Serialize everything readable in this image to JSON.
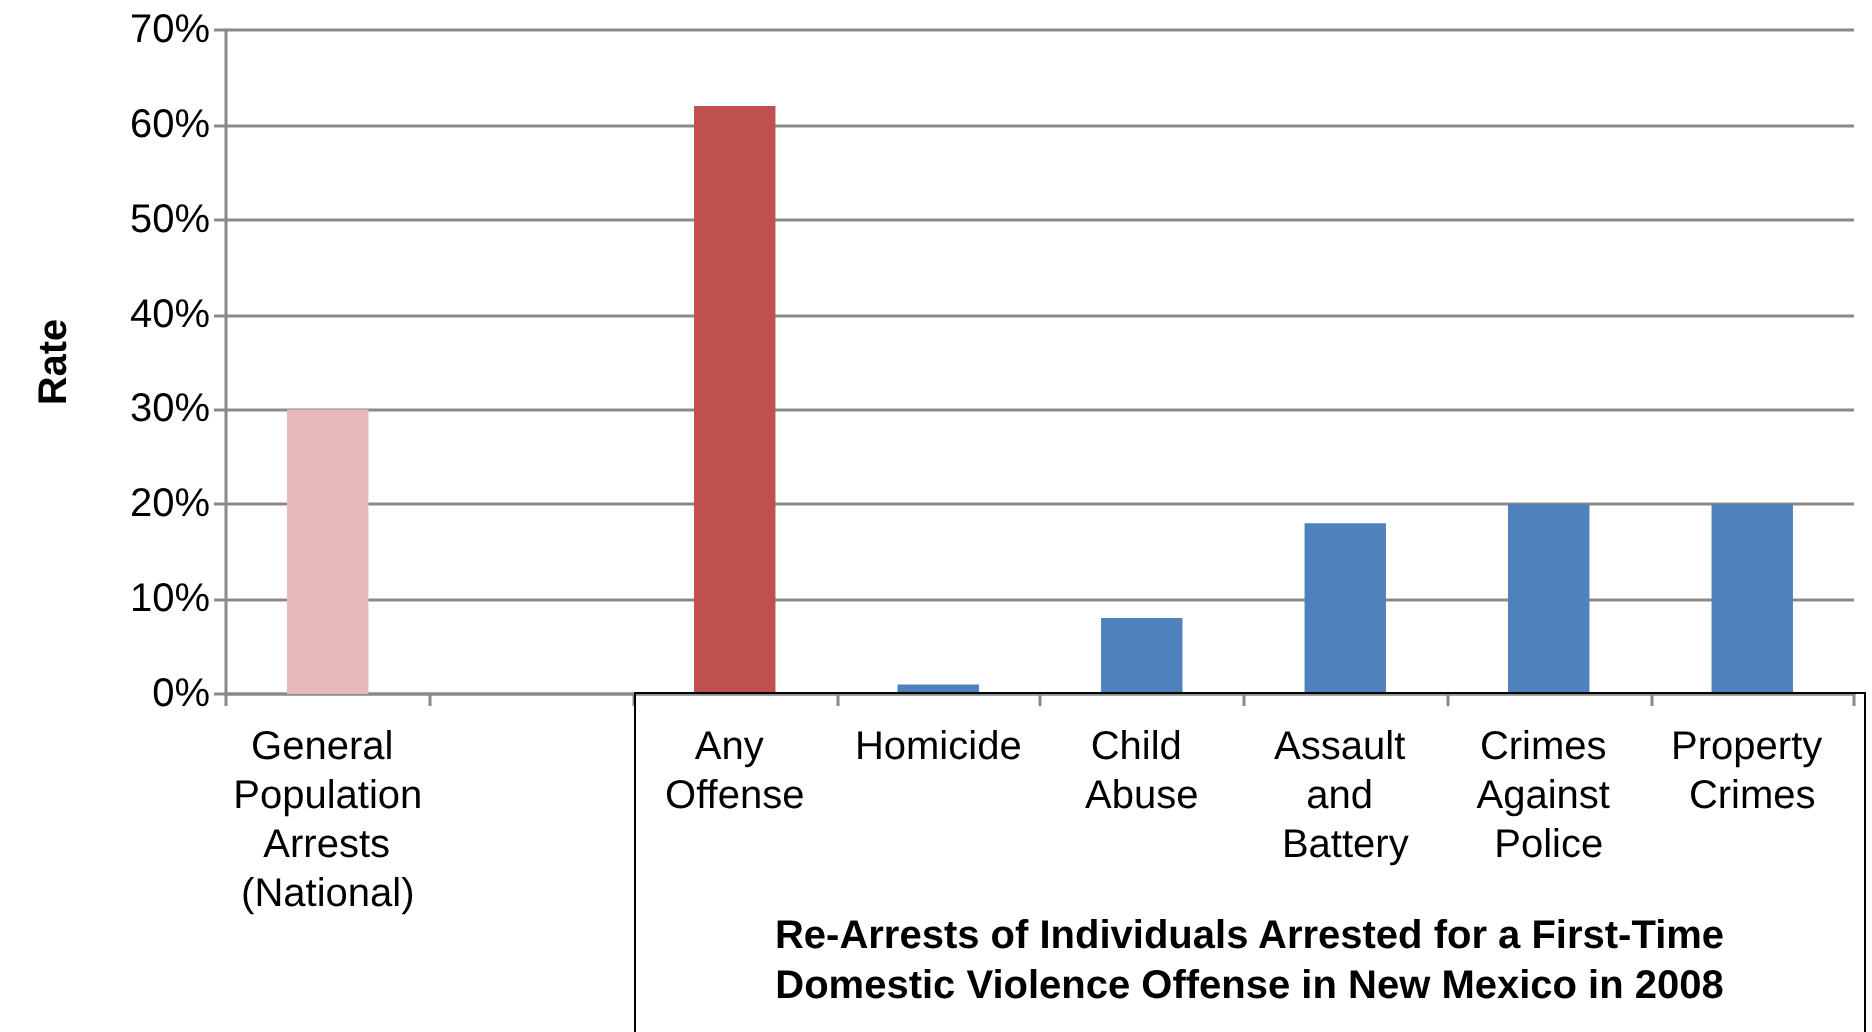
{
  "chart_data": {
    "type": "bar",
    "ylabel": "Rate",
    "categories": [
      "General Population Arrests (National)",
      null,
      "Any Offense",
      "Homicide",
      "Child Abuse",
      "Assault and Battery",
      "Crimes Against Police",
      "Property Crimes"
    ],
    "values": [
      30,
      null,
      62,
      1,
      8,
      18,
      20,
      20
    ],
    "colors": [
      "#e6b9b8",
      null,
      "#c0504d",
      "#4f81bd",
      "#4f81bd",
      "#4f81bd",
      "#4f81bd",
      "#4f81bd"
    ],
    "ylim": [
      0,
      70
    ],
    "yticks": [
      {
        "value": 0,
        "label": "0%"
      },
      {
        "value": 10,
        "label": "10%"
      },
      {
        "value": 20,
        "label": "20%"
      },
      {
        "value": 30,
        "label": "30%"
      },
      {
        "value": 40,
        "label": "40%"
      },
      {
        "value": 50,
        "label": "50%"
      },
      {
        "value": 60,
        "label": "60%"
      },
      {
        "value": 70,
        "label": "70%"
      }
    ],
    "grid": "y",
    "annotations": [
      "Re-Arrests of Individuals Arrested for a First-Time Domestic Violence Offense in New Mexico in 2008"
    ]
  }
}
